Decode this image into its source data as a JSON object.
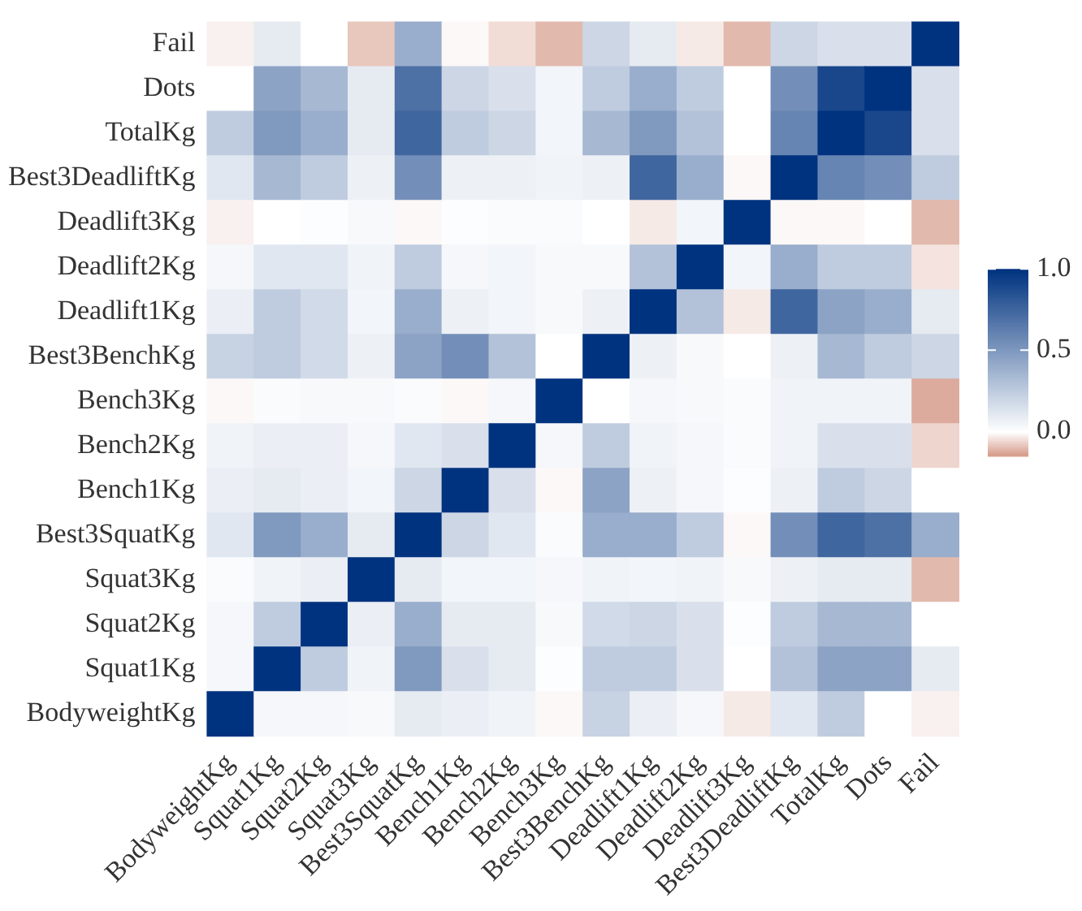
{
  "chart_data": {
    "type": "heatmap",
    "categories": [
      "BodyweightKg",
      "Squat1Kg",
      "Squat2Kg",
      "Squat3Kg",
      "Best3SquatKg",
      "Bench1Kg",
      "Bench2Kg",
      "Bench3Kg",
      "Best3BenchKg",
      "Deadlift1Kg",
      "Deadlift2Kg",
      "Deadlift3Kg",
      "Best3DeadliftKg",
      "TotalKg",
      "Dots",
      "Fail"
    ],
    "y_categories": [
      "Fail",
      "Dots",
      "TotalKg",
      "Best3DeadliftKg",
      "Deadlift3Kg",
      "Deadlift2Kg",
      "Deadlift1Kg",
      "Best3BenchKg",
      "Bench3Kg",
      "Bench2Kg",
      "Bench1Kg",
      "Best3SquatKg",
      "Squat3Kg",
      "Squat2Kg",
      "Squat1Kg",
      "BodyweightKg"
    ],
    "cells": [
      [
        -0.02,
        0.1,
        0.0,
        -0.08,
        0.4,
        -0.01,
        -0.05,
        -0.1,
        0.2,
        0.1,
        -0.03,
        -0.1,
        0.2,
        0.15,
        0.15,
        1.0
      ],
      [
        0.0,
        0.45,
        0.35,
        0.1,
        0.7,
        0.2,
        0.15,
        0.05,
        0.25,
        0.4,
        0.25,
        0.0,
        0.55,
        0.9,
        1.0,
        0.15
      ],
      [
        0.25,
        0.5,
        0.4,
        0.1,
        0.75,
        0.25,
        0.2,
        0.05,
        0.35,
        0.5,
        0.3,
        0.0,
        0.6,
        1.0,
        0.9,
        0.15
      ],
      [
        0.12,
        0.35,
        0.25,
        0.07,
        0.55,
        0.07,
        0.07,
        0.06,
        0.07,
        0.75,
        0.4,
        -0.01,
        1.0,
        0.6,
        0.55,
        0.25
      ],
      [
        -0.02,
        0.0,
        0.01,
        0.03,
        -0.01,
        0.01,
        0.02,
        0.02,
        0.0,
        -0.03,
        0.05,
        1.0,
        -0.01,
        -0.01,
        0.0,
        -0.1
      ],
      [
        0.04,
        0.12,
        0.12,
        0.06,
        0.25,
        0.04,
        0.05,
        0.03,
        0.03,
        0.3,
        1.0,
        0.05,
        0.4,
        0.25,
        0.25,
        -0.04
      ],
      [
        0.08,
        0.25,
        0.18,
        0.05,
        0.4,
        0.07,
        0.05,
        0.03,
        0.07,
        1.0,
        0.3,
        -0.03,
        0.75,
        0.45,
        0.4,
        0.1
      ],
      [
        0.22,
        0.25,
        0.18,
        0.07,
        0.45,
        0.55,
        0.3,
        0.0,
        1.0,
        0.07,
        0.03,
        0.0,
        0.07,
        0.35,
        0.25,
        0.2
      ],
      [
        -0.01,
        0.02,
        0.03,
        0.03,
        0.02,
        -0.01,
        0.04,
        1.0,
        0.0,
        0.04,
        0.03,
        0.02,
        0.06,
        0.06,
        0.06,
        -0.12
      ],
      [
        0.06,
        0.08,
        0.08,
        0.04,
        0.12,
        0.15,
        1.0,
        0.04,
        0.25,
        0.06,
        0.04,
        0.02,
        0.06,
        0.15,
        0.15,
        -0.06
      ],
      [
        0.08,
        0.1,
        0.08,
        0.05,
        0.2,
        1.0,
        0.15,
        -0.01,
        0.45,
        0.07,
        0.04,
        0.01,
        0.07,
        0.25,
        0.2,
        0.0
      ],
      [
        0.12,
        0.5,
        0.4,
        0.1,
        1.0,
        0.2,
        0.12,
        0.02,
        0.4,
        0.4,
        0.25,
        -0.01,
        0.55,
        0.75,
        0.7,
        0.4
      ],
      [
        0.02,
        0.06,
        0.08,
        1.0,
        0.1,
        0.05,
        0.05,
        0.04,
        0.06,
        0.05,
        0.06,
        0.03,
        0.07,
        0.1,
        0.1,
        -0.1
      ],
      [
        0.04,
        0.25,
        1.0,
        0.08,
        0.4,
        0.1,
        0.1,
        0.03,
        0.18,
        0.2,
        0.15,
        0.01,
        0.25,
        0.35,
        0.35,
        0.0
      ],
      [
        0.04,
        1.0,
        0.25,
        0.06,
        0.5,
        0.15,
        0.1,
        0.01,
        0.25,
        0.25,
        0.15,
        0.0,
        0.3,
        0.45,
        0.45,
        0.1
      ],
      [
        1.0,
        0.04,
        0.04,
        0.03,
        0.1,
        0.08,
        0.06,
        -0.01,
        0.22,
        0.08,
        0.04,
        -0.03,
        0.12,
        0.25,
        0.0,
        -0.02
      ]
    ],
    "clim": [
      -0.15,
      1.0
    ],
    "cticks": [
      {
        "value": 0,
        "label": "0.0"
      },
      {
        "value": 0.5,
        "label": "0.5"
      },
      {
        "value": 1,
        "label": "1.0"
      }
    ]
  }
}
